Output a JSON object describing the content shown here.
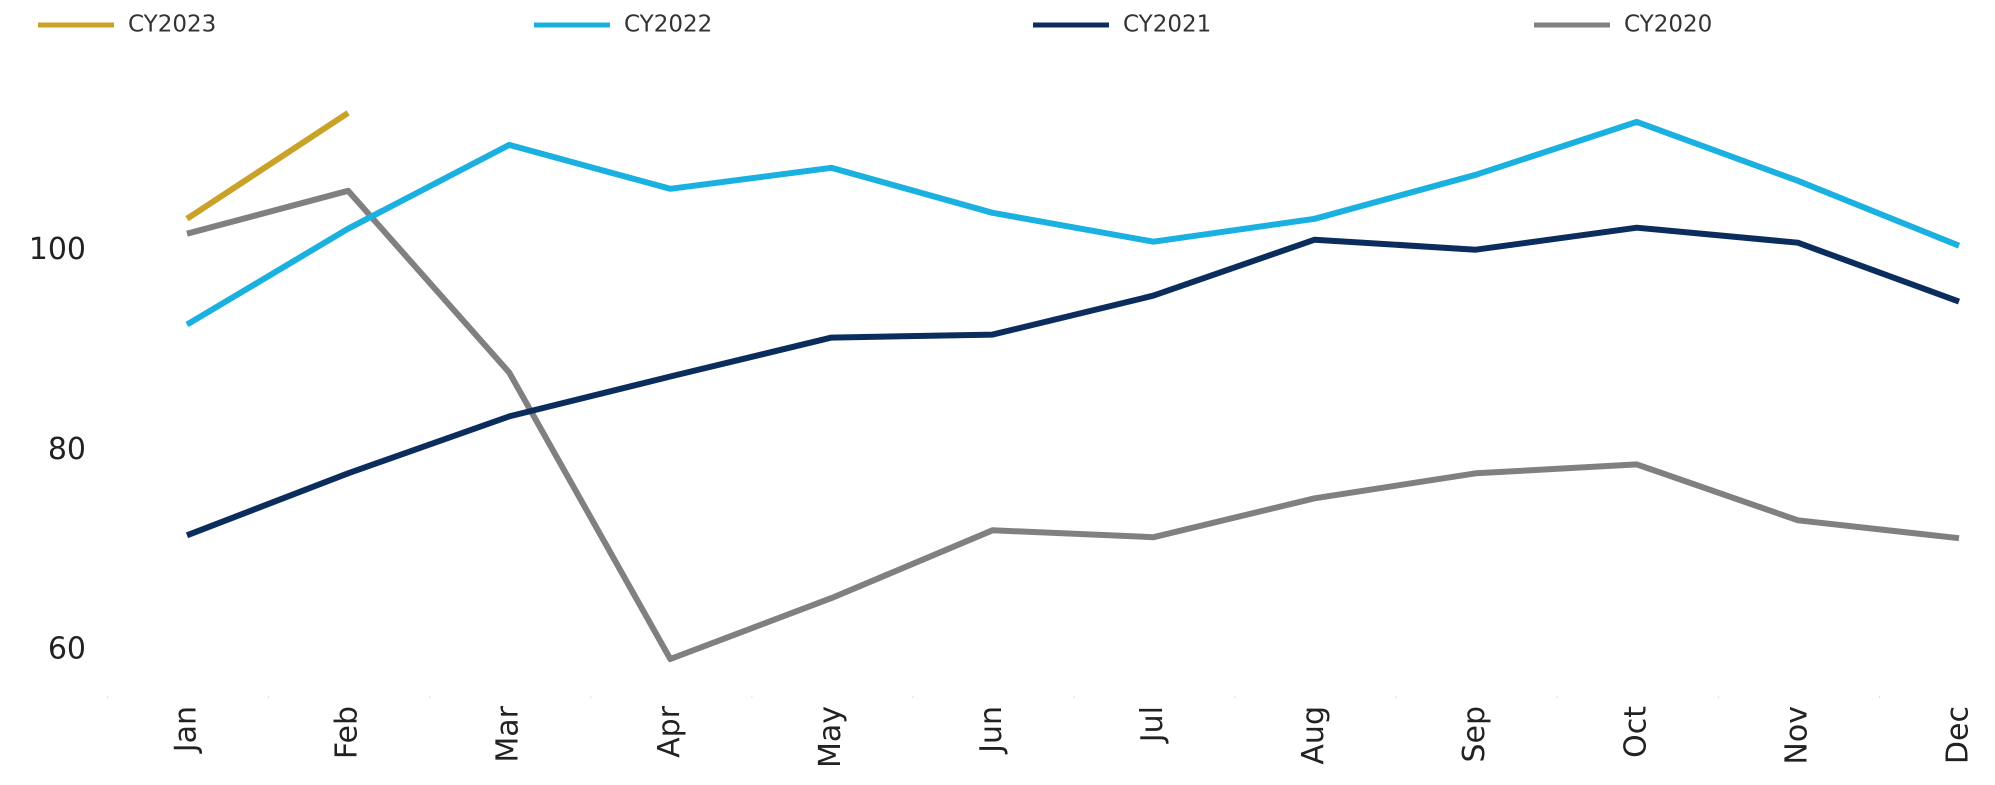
{
  "chart_data": {
    "type": "line",
    "categories": [
      "Jan",
      "Feb",
      "Mar",
      "Apr",
      "May",
      "Jun",
      "Jul",
      "Aug",
      "Sep",
      "Oct",
      "Nov",
      "Dec"
    ],
    "series": [
      {
        "name": "CY2023",
        "color": "#c9a227",
        "values": [
          103.2,
          113.8,
          null,
          null,
          null,
          null,
          null,
          null,
          null,
          null,
          null,
          null
        ]
      },
      {
        "name": "CY2022",
        "color": "#1ab0e0",
        "values": [
          92.6,
          102.2,
          110.6,
          106.2,
          108.3,
          103.8,
          100.9,
          103.2,
          107.6,
          112.9,
          107.0,
          100.5
        ]
      },
      {
        "name": "CY2021",
        "color": "#0b2d5e",
        "values": [
          71.5,
          77.7,
          83.4,
          87.4,
          91.3,
          91.6,
          95.5,
          101.1,
          100.1,
          102.3,
          100.8,
          94.9
        ]
      },
      {
        "name": "CY2020",
        "color": "#808080",
        "values": [
          101.7,
          106.0,
          87.8,
          59.1,
          65.2,
          72.0,
          71.3,
          75.2,
          77.7,
          78.6,
          73.0,
          71.2
        ]
      }
    ],
    "ylim": [
      56,
      118
    ],
    "yticks": [
      60,
      80,
      100
    ],
    "grid": false,
    "legend": "top"
  }
}
